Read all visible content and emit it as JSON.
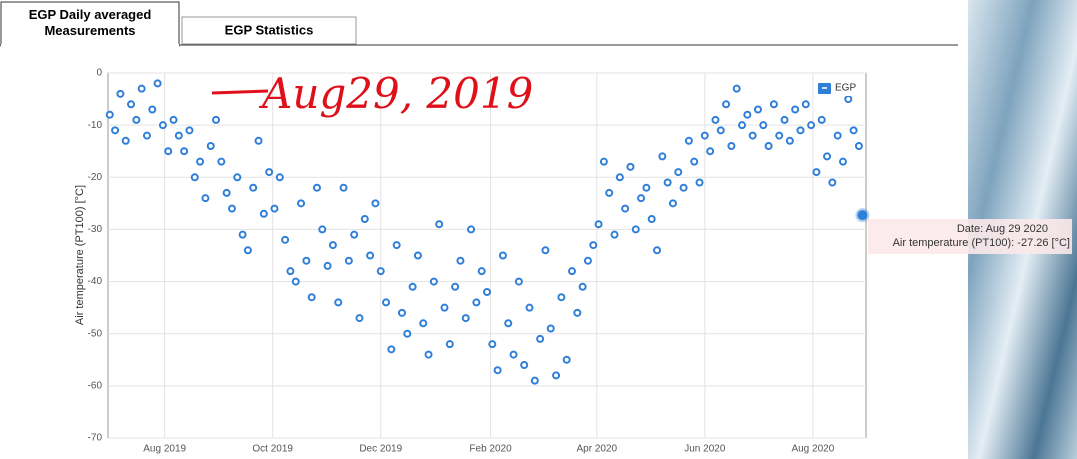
{
  "tabs": [
    "EGP Daily averaged Measurements",
    "EGP Statistics"
  ],
  "annotation": "Aug29, 2019",
  "tooltip": {
    "date_line": "Date: Aug 29 2020",
    "value_line": "Air temperature (PT100): -27.26 [°C]"
  },
  "chart_data": {
    "type": "scatter",
    "y_label": "Air temperature (PT100) [°C]",
    "xlim": [
      "2019-06-30",
      "2020-08-31"
    ],
    "xticks": [
      {
        "value": "2019-08-01",
        "label": "Aug 2019"
      },
      {
        "value": "2019-10-01",
        "label": "Oct 2019"
      },
      {
        "value": "2019-12-01",
        "label": "Dec 2019"
      },
      {
        "value": "2020-02-01",
        "label": "Feb 2020"
      },
      {
        "value": "2020-04-01",
        "label": "Apr 2020"
      },
      {
        "value": "2020-06-01",
        "label": "Jun 2020"
      },
      {
        "value": "2020-08-01",
        "label": "Aug 2020"
      }
    ],
    "ylim": [
      -70,
      0
    ],
    "yticks": [
      0,
      -10,
      -20,
      -30,
      -40,
      -50,
      -60,
      -70
    ],
    "grid": true,
    "legend": "top-right",
    "series": [
      {
        "name": "EGP",
        "color": "#2f7ed8",
        "x": [
          "2019-07-01",
          "2019-07-04",
          "2019-07-07",
          "2019-07-10",
          "2019-07-13",
          "2019-07-16",
          "2019-07-19",
          "2019-07-22",
          "2019-07-25",
          "2019-07-28",
          "2019-07-31",
          "2019-08-03",
          "2019-08-06",
          "2019-08-09",
          "2019-08-12",
          "2019-08-15",
          "2019-08-18",
          "2019-08-21",
          "2019-08-24",
          "2019-08-27",
          "2019-08-30",
          "2019-09-02",
          "2019-09-05",
          "2019-09-08",
          "2019-09-11",
          "2019-09-14",
          "2019-09-17",
          "2019-09-20",
          "2019-09-23",
          "2019-09-26",
          "2019-09-29",
          "2019-10-02",
          "2019-10-05",
          "2019-10-08",
          "2019-10-11",
          "2019-10-14",
          "2019-10-17",
          "2019-10-20",
          "2019-10-23",
          "2019-10-26",
          "2019-10-29",
          "2019-11-01",
          "2019-11-04",
          "2019-11-07",
          "2019-11-10",
          "2019-11-13",
          "2019-11-16",
          "2019-11-19",
          "2019-11-22",
          "2019-11-25",
          "2019-11-28",
          "2019-12-01",
          "2019-12-04",
          "2019-12-07",
          "2019-12-10",
          "2019-12-13",
          "2019-12-16",
          "2019-12-19",
          "2019-12-22",
          "2019-12-25",
          "2019-12-28",
          "2019-12-31",
          "2020-01-03",
          "2020-01-06",
          "2020-01-09",
          "2020-01-12",
          "2020-01-15",
          "2020-01-18",
          "2020-01-21",
          "2020-01-24",
          "2020-01-27",
          "2020-01-30",
          "2020-02-02",
          "2020-02-05",
          "2020-02-08",
          "2020-02-11",
          "2020-02-14",
          "2020-02-17",
          "2020-02-20",
          "2020-02-23",
          "2020-02-26",
          "2020-02-29",
          "2020-03-03",
          "2020-03-06",
          "2020-03-09",
          "2020-03-12",
          "2020-03-15",
          "2020-03-18",
          "2020-03-21",
          "2020-03-24",
          "2020-03-27",
          "2020-03-30",
          "2020-04-02",
          "2020-04-05",
          "2020-04-08",
          "2020-04-11",
          "2020-04-14",
          "2020-04-17",
          "2020-04-20",
          "2020-04-23",
          "2020-04-26",
          "2020-04-29",
          "2020-05-02",
          "2020-05-05",
          "2020-05-08",
          "2020-05-11",
          "2020-05-14",
          "2020-05-17",
          "2020-05-20",
          "2020-05-23",
          "2020-05-26",
          "2020-05-29",
          "2020-06-01",
          "2020-06-04",
          "2020-06-07",
          "2020-06-10",
          "2020-06-13",
          "2020-06-16",
          "2020-06-19",
          "2020-06-22",
          "2020-06-25",
          "2020-06-28",
          "2020-07-01",
          "2020-07-04",
          "2020-07-07",
          "2020-07-10",
          "2020-07-13",
          "2020-07-16",
          "2020-07-19",
          "2020-07-22",
          "2020-07-25",
          "2020-07-28",
          "2020-07-31",
          "2020-08-03",
          "2020-08-06",
          "2020-08-09",
          "2020-08-12",
          "2020-08-15",
          "2020-08-18",
          "2020-08-21",
          "2020-08-24",
          "2020-08-27",
          "2020-08-29"
        ],
        "values": [
          -8,
          -11,
          -4,
          -13,
          -6,
          -9,
          -3,
          -12,
          -7,
          -2,
          -10,
          -15,
          -9,
          -12,
          -15,
          -11,
          -20,
          -17,
          -24,
          -14,
          -9,
          -17,
          -23,
          -26,
          -20,
          -31,
          -34,
          -22,
          -13,
          -27,
          -19,
          -26,
          -20,
          -32,
          -38,
          -40,
          -25,
          -36,
          -43,
          -22,
          -30,
          -37,
          -33,
          -44,
          -22,
          -36,
          -31,
          -47,
          -28,
          -35,
          -25,
          -38,
          -44,
          -53,
          -33,
          -46,
          -50,
          -41,
          -35,
          -48,
          -54,
          -40,
          -29,
          -45,
          -52,
          -41,
          -36,
          -47,
          -30,
          -44,
          -38,
          -42,
          -52,
          -57,
          -35,
          -48,
          -54,
          -40,
          -56,
          -45,
          -59,
          -51,
          -34,
          -49,
          -58,
          -43,
          -55,
          -38,
          -46,
          -41,
          -36,
          -33,
          -29,
          -17,
          -23,
          -31,
          -20,
          -26,
          -18,
          -30,
          -24,
          -22,
          -28,
          -34,
          -16,
          -21,
          -25,
          -19,
          -22,
          -13,
          -17,
          -21,
          -12,
          -15,
          -9,
          -11,
          -6,
          -14,
          -3,
          -10,
          -8,
          -12,
          -7,
          -10,
          -14,
          -6,
          -12,
          -9,
          -13,
          -7,
          -11,
          -6,
          -10,
          -19,
          -9,
          -16,
          -21,
          -12,
          -17,
          -5,
          -11,
          -14,
          -27.26
        ]
      }
    ]
  }
}
